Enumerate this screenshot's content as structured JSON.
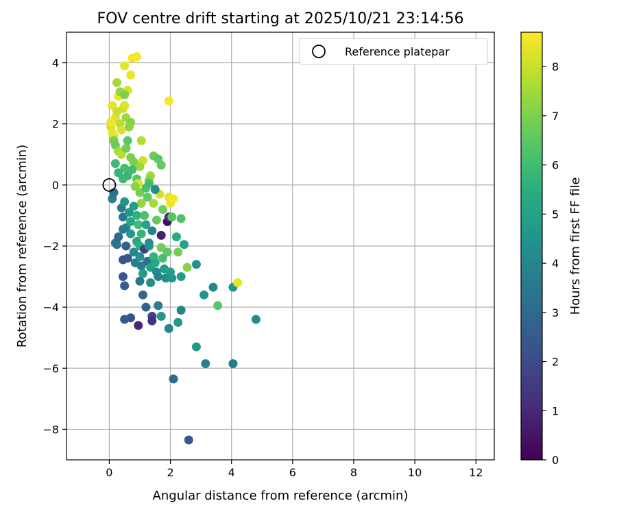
{
  "chart_data": {
    "type": "scatter",
    "title": "FOV centre drift starting at 2025/10/21 23:14:56",
    "xlabel": "Angular distance from reference (arcmin)",
    "ylabel": "Rotation from reference (arcmin)",
    "xlim": [
      -1.4,
      12.6
    ],
    "ylim": [
      -9.0,
      5.0
    ],
    "xticks": [
      0,
      2,
      4,
      6,
      8,
      10,
      12
    ],
    "yticks": [
      -8,
      -6,
      -4,
      -2,
      0,
      2,
      4
    ],
    "grid": true,
    "legend": {
      "position": "top-right",
      "label": "Reference platepar"
    },
    "reference_point": {
      "x": 0,
      "y": 0
    },
    "colorbar": {
      "label": "Hours from first FF file",
      "range": [
        0,
        8.7
      ],
      "ticks": [
        0,
        1,
        2,
        3,
        4,
        5,
        6,
        7,
        8
      ],
      "colormap": "viridis"
    },
    "points": [
      {
        "x": 0.05,
        "y": 1.9,
        "c": 8.2
      },
      {
        "x": 0.1,
        "y": 2.6,
        "c": 8.4
      },
      {
        "x": 0.15,
        "y": 1.6,
        "c": 8.1
      },
      {
        "x": 0.2,
        "y": 2.2,
        "c": 8.3
      },
      {
        "x": 0.25,
        "y": 2.4,
        "c": 8.0
      },
      {
        "x": 0.3,
        "y": 2.9,
        "c": 8.5
      },
      {
        "x": 0.35,
        "y": 2.0,
        "c": 7.8
      },
      {
        "x": 0.4,
        "y": 1.8,
        "c": 8.2
      },
      {
        "x": 0.45,
        "y": 2.5,
        "c": 8.0
      },
      {
        "x": 0.5,
        "y": 2.6,
        "c": 8.3
      },
      {
        "x": 0.5,
        "y": 3.9,
        "c": 8.4
      },
      {
        "x": 0.6,
        "y": 3.1,
        "c": 8.2
      },
      {
        "x": 0.7,
        "y": 3.6,
        "c": 8.5
      },
      {
        "x": 0.75,
        "y": 4.15,
        "c": 8.6
      },
      {
        "x": 0.9,
        "y": 4.2,
        "c": 8.6
      },
      {
        "x": 1.95,
        "y": 2.75,
        "c": 8.6
      },
      {
        "x": 0.05,
        "y": 2.05,
        "c": 8.5
      },
      {
        "x": 0.1,
        "y": 1.7,
        "c": 8.4
      },
      {
        "x": 0.25,
        "y": 3.35,
        "c": 7.5
      },
      {
        "x": 0.35,
        "y": 3.05,
        "c": 7.3
      },
      {
        "x": 0.5,
        "y": 2.95,
        "c": 7.0
      },
      {
        "x": 0.55,
        "y": 2.2,
        "c": 7.4
      },
      {
        "x": 0.65,
        "y": 1.9,
        "c": 7.2
      },
      {
        "x": 0.7,
        "y": 2.05,
        "c": 7.1
      },
      {
        "x": 0.15,
        "y": 1.45,
        "c": 6.9
      },
      {
        "x": 0.2,
        "y": 1.3,
        "c": 6.7
      },
      {
        "x": 0.3,
        "y": 1.1,
        "c": 7.6
      },
      {
        "x": 0.4,
        "y": 1.0,
        "c": 7.8
      },
      {
        "x": 0.55,
        "y": 1.2,
        "c": 6.8
      },
      {
        "x": 0.6,
        "y": 1.45,
        "c": 6.5
      },
      {
        "x": 0.7,
        "y": 0.9,
        "c": 7.0
      },
      {
        "x": 0.8,
        "y": 0.75,
        "c": 6.9
      },
      {
        "x": 1.05,
        "y": 1.45,
        "c": 7.7
      },
      {
        "x": 1.1,
        "y": 0.8,
        "c": 8.1
      },
      {
        "x": 1.0,
        "y": 0.6,
        "c": 7.4
      },
      {
        "x": 1.45,
        "y": 0.95,
        "c": 6.8
      },
      {
        "x": 1.6,
        "y": 0.85,
        "c": 6.5
      },
      {
        "x": 1.7,
        "y": 0.65,
        "c": 6.6
      },
      {
        "x": 1.35,
        "y": 0.3,
        "c": 7.5
      },
      {
        "x": 1.3,
        "y": 0.15,
        "c": 7.1
      },
      {
        "x": 0.2,
        "y": 0.7,
        "c": 5.9
      },
      {
        "x": 0.3,
        "y": 0.4,
        "c": 5.7
      },
      {
        "x": 0.45,
        "y": 0.2,
        "c": 5.9
      },
      {
        "x": 0.5,
        "y": 0.55,
        "c": 6.1
      },
      {
        "x": 0.6,
        "y": 0.3,
        "c": 5.8
      },
      {
        "x": 0.75,
        "y": 0.5,
        "c": 6.0
      },
      {
        "x": 0.9,
        "y": 0.2,
        "c": 6.4
      },
      {
        "x": 0.95,
        "y": 0.05,
        "c": 8.3
      },
      {
        "x": 0.85,
        "y": -0.05,
        "c": 7.2
      },
      {
        "x": 1.0,
        "y": -0.25,
        "c": 6.9
      },
      {
        "x": 1.2,
        "y": -0.1,
        "c": 6.2
      },
      {
        "x": 1.3,
        "y": 0.05,
        "c": 6.0
      },
      {
        "x": 1.05,
        "y": -0.6,
        "c": 7.3
      },
      {
        "x": 1.25,
        "y": -0.4,
        "c": 6.6
      },
      {
        "x": 1.45,
        "y": -0.6,
        "c": 7.5
      },
      {
        "x": 1.65,
        "y": -0.3,
        "c": 8.1
      },
      {
        "x": 1.95,
        "y": -0.4,
        "c": 8.4
      },
      {
        "x": 2.0,
        "y": -0.6,
        "c": 8.5
      },
      {
        "x": 2.1,
        "y": -0.45,
        "c": 8.6
      },
      {
        "x": 1.75,
        "y": -0.8,
        "c": 6.8
      },
      {
        "x": 1.5,
        "y": -0.15,
        "c": 4.2
      },
      {
        "x": 0.1,
        "y": -0.45,
        "c": 3.8
      },
      {
        "x": 0.15,
        "y": -0.25,
        "c": 3.2
      },
      {
        "x": 0.4,
        "y": -0.75,
        "c": 3.6
      },
      {
        "x": 0.45,
        "y": -1.05,
        "c": 3.4
      },
      {
        "x": 0.5,
        "y": -0.55,
        "c": 4.5
      },
      {
        "x": 0.55,
        "y": -1.4,
        "c": 3.9
      },
      {
        "x": 0.65,
        "y": -0.9,
        "c": 4.7
      },
      {
        "x": 0.7,
        "y": -1.2,
        "c": 5.3
      },
      {
        "x": 0.8,
        "y": -0.7,
        "c": 4.9
      },
      {
        "x": 0.9,
        "y": -1.0,
        "c": 5.6
      },
      {
        "x": 0.95,
        "y": -1.3,
        "c": 6.0
      },
      {
        "x": 1.05,
        "y": -1.6,
        "c": 5.8
      },
      {
        "x": 1.15,
        "y": -1.0,
        "c": 6.2
      },
      {
        "x": 1.2,
        "y": -1.3,
        "c": 5.1
      },
      {
        "x": 1.3,
        "y": -1.9,
        "c": 4.3
      },
      {
        "x": 1.4,
        "y": -1.5,
        "c": 4.0
      },
      {
        "x": 1.55,
        "y": -1.15,
        "c": 6.7
      },
      {
        "x": 1.7,
        "y": -1.65,
        "c": 0.8
      },
      {
        "x": 1.9,
        "y": -1.2,
        "c": 0.3
      },
      {
        "x": 1.95,
        "y": -1.05,
        "c": 1.1
      },
      {
        "x": 2.05,
        "y": -1.05,
        "c": 6.4
      },
      {
        "x": 2.35,
        "y": -1.1,
        "c": 6.3
      },
      {
        "x": 2.2,
        "y": -1.7,
        "c": 5.4
      },
      {
        "x": 0.2,
        "y": -1.9,
        "c": 3.5
      },
      {
        "x": 0.25,
        "y": -1.95,
        "c": 3.3
      },
      {
        "x": 0.3,
        "y": -1.7,
        "c": 2.9
      },
      {
        "x": 0.45,
        "y": -1.45,
        "c": 3.7
      },
      {
        "x": 0.55,
        "y": -2.0,
        "c": 2.6
      },
      {
        "x": 0.6,
        "y": -2.4,
        "c": 2.4
      },
      {
        "x": 0.45,
        "y": -2.45,
        "c": 2.2
      },
      {
        "x": 0.7,
        "y": -1.6,
        "c": 4.6
      },
      {
        "x": 0.8,
        "y": -2.2,
        "c": 4.1
      },
      {
        "x": 0.85,
        "y": -2.55,
        "c": 3.8
      },
      {
        "x": 0.9,
        "y": -1.85,
        "c": 5.2
      },
      {
        "x": 1.0,
        "y": -2.0,
        "c": 5.5
      },
      {
        "x": 1.0,
        "y": -2.35,
        "c": 4.4
      },
      {
        "x": 1.05,
        "y": -2.65,
        "c": 3.6
      },
      {
        "x": 1.1,
        "y": -2.9,
        "c": 4.8
      },
      {
        "x": 1.15,
        "y": -2.1,
        "c": 1.6
      },
      {
        "x": 1.25,
        "y": -2.5,
        "c": 3.2
      },
      {
        "x": 1.3,
        "y": -2.0,
        "c": 4.5
      },
      {
        "x": 1.35,
        "y": -2.7,
        "c": 4.9
      },
      {
        "x": 1.45,
        "y": -2.35,
        "c": 5.7
      },
      {
        "x": 1.5,
        "y": -2.55,
        "c": 5.3
      },
      {
        "x": 1.55,
        "y": -2.85,
        "c": 4.2
      },
      {
        "x": 1.6,
        "y": -3.0,
        "c": 3.9
      },
      {
        "x": 1.7,
        "y": -2.05,
        "c": 6.8
      },
      {
        "x": 1.75,
        "y": -2.4,
        "c": 6.1
      },
      {
        "x": 1.8,
        "y": -2.75,
        "c": 4.7
      },
      {
        "x": 1.85,
        "y": -3.05,
        "c": 4.3
      },
      {
        "x": 1.9,
        "y": -2.2,
        "c": 6.5
      },
      {
        "x": 2.0,
        "y": -2.85,
        "c": 5.0
      },
      {
        "x": 2.05,
        "y": -3.05,
        "c": 4.6
      },
      {
        "x": 2.25,
        "y": -2.2,
        "c": 6.9
      },
      {
        "x": 2.35,
        "y": -3.0,
        "c": 4.8
      },
      {
        "x": 2.45,
        "y": -1.95,
        "c": 5.0
      },
      {
        "x": 2.55,
        "y": -2.7,
        "c": 7.1
      },
      {
        "x": 2.85,
        "y": -2.6,
        "c": 4.4
      },
      {
        "x": 0.45,
        "y": -3.0,
        "c": 2.4
      },
      {
        "x": 0.5,
        "y": -3.3,
        "c": 2.6
      },
      {
        "x": 1.0,
        "y": -3.15,
        "c": 3.5
      },
      {
        "x": 1.35,
        "y": -3.2,
        "c": 4.3
      },
      {
        "x": 1.1,
        "y": -3.6,
        "c": 3.0
      },
      {
        "x": 1.2,
        "y": -4.0,
        "c": 2.8
      },
      {
        "x": 1.4,
        "y": -4.3,
        "c": 1.7
      },
      {
        "x": 1.4,
        "y": -4.45,
        "c": 1.3
      },
      {
        "x": 1.6,
        "y": -3.95,
        "c": 3.6
      },
      {
        "x": 1.7,
        "y": -4.3,
        "c": 4.6
      },
      {
        "x": 2.25,
        "y": -4.5,
        "c": 4.7
      },
      {
        "x": 2.35,
        "y": -4.1,
        "c": 3.9
      },
      {
        "x": 1.95,
        "y": -4.7,
        "c": 4.0
      },
      {
        "x": 0.5,
        "y": -4.4,
        "c": 2.4
      },
      {
        "x": 0.7,
        "y": -4.35,
        "c": 2.3
      },
      {
        "x": 0.95,
        "y": -4.6,
        "c": 1.0
      },
      {
        "x": 3.1,
        "y": -3.6,
        "c": 4.5
      },
      {
        "x": 3.4,
        "y": -3.35,
        "c": 4.1
      },
      {
        "x": 3.55,
        "y": -3.95,
        "c": 6.4
      },
      {
        "x": 4.05,
        "y": -3.35,
        "c": 4.5
      },
      {
        "x": 4.2,
        "y": -3.2,
        "c": 8.4
      },
      {
        "x": 4.8,
        "y": -4.4,
        "c": 4.2
      },
      {
        "x": 2.85,
        "y": -5.3,
        "c": 4.7
      },
      {
        "x": 3.15,
        "y": -5.85,
        "c": 3.8
      },
      {
        "x": 4.05,
        "y": -5.85,
        "c": 3.6
      },
      {
        "x": 2.1,
        "y": -6.35,
        "c": 3.1
      },
      {
        "x": 2.6,
        "y": -8.35,
        "c": 2.5
      }
    ]
  }
}
